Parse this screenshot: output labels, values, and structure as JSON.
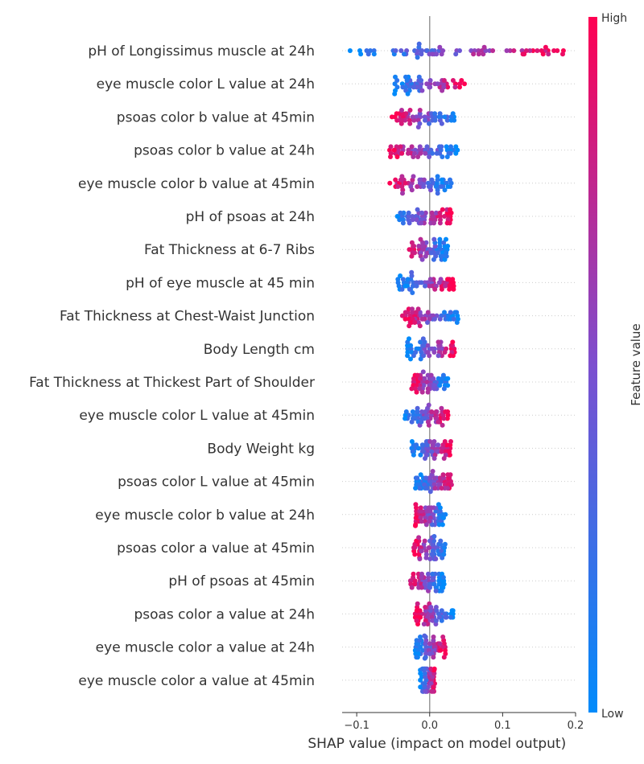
{
  "chart_data": {
    "type": "scatter",
    "subtype": "shap-beeswarm",
    "xlabel": "SHAP value (impact on model output)",
    "xlim": [
      -0.12,
      0.2
    ],
    "xticks": [
      -0.1,
      0.0,
      0.1,
      0.2
    ],
    "xtick_labels": [
      "−0.1",
      "0.0",
      "0.1",
      "0.2"
    ],
    "grid": "dotted horizontal per feature row",
    "colorbar": {
      "title": "Feature value",
      "high_label": "High",
      "low_label": "Low",
      "high_color": "#ff0052",
      "low_color": "#008bfb",
      "placement": "right"
    },
    "features": [
      {
        "name": "pH of Longissimus muscle at 24h",
        "range": [
          -0.11,
          0.187
        ],
        "low_side": "left"
      },
      {
        "name": "eye muscle color L value at 24h",
        "range": [
          -0.05,
          0.048
        ],
        "low_side": "left"
      },
      {
        "name": "psoas color b value at 45min",
        "range": [
          -0.055,
          0.042
        ],
        "low_side": "right"
      },
      {
        "name": "psoas color b value at 24h",
        "range": [
          -0.055,
          0.04
        ],
        "low_side": "right"
      },
      {
        "name": "eye muscle color b value at 45min",
        "range": [
          -0.055,
          0.03
        ],
        "low_side": "right"
      },
      {
        "name": "pH of psoas at 24h",
        "range": [
          -0.045,
          0.03
        ],
        "low_side": "left"
      },
      {
        "name": "Fat Thickness at 6-7 Ribs",
        "range": [
          -0.03,
          0.025
        ],
        "low_side": "right"
      },
      {
        "name": "pH of eye muscle at 45 min",
        "range": [
          -0.045,
          0.033
        ],
        "low_side": "left"
      },
      {
        "name": "Fat Thickness at Chest-Waist Junction",
        "range": [
          -0.038,
          0.04
        ],
        "low_side": "right"
      },
      {
        "name": "Body Length cm",
        "range": [
          -0.032,
          0.038
        ],
        "low_side": "left"
      },
      {
        "name": "Fat Thickness at Thickest Part of Shoulder",
        "range": [
          -0.025,
          0.025
        ],
        "low_side": "right"
      },
      {
        "name": "eye muscle color L value at 45min",
        "range": [
          -0.035,
          0.026
        ],
        "low_side": "left"
      },
      {
        "name": "Body Weight kg",
        "range": [
          -0.025,
          0.03
        ],
        "low_side": "left"
      },
      {
        "name": "psoas color L value at 45min",
        "range": [
          -0.02,
          0.032
        ],
        "low_side": "left"
      },
      {
        "name": "eye muscle color b value at 24h",
        "range": [
          -0.02,
          0.022
        ],
        "low_side": "right"
      },
      {
        "name": "psoas color a value at 45min",
        "range": [
          -0.022,
          0.022
        ],
        "low_side": "right"
      },
      {
        "name": "pH of psoas at 45min",
        "range": [
          -0.028,
          0.02
        ],
        "low_side": "right"
      },
      {
        "name": "psoas color a value at 24h",
        "range": [
          -0.02,
          0.033
        ],
        "low_side": "right"
      },
      {
        "name": "eye muscle color a value at 24h",
        "range": [
          -0.02,
          0.022
        ],
        "low_side": "left"
      },
      {
        "name": "eye muscle color a value at 45min",
        "range": [
          -0.013,
          0.008
        ],
        "low_side": "left"
      }
    ]
  }
}
